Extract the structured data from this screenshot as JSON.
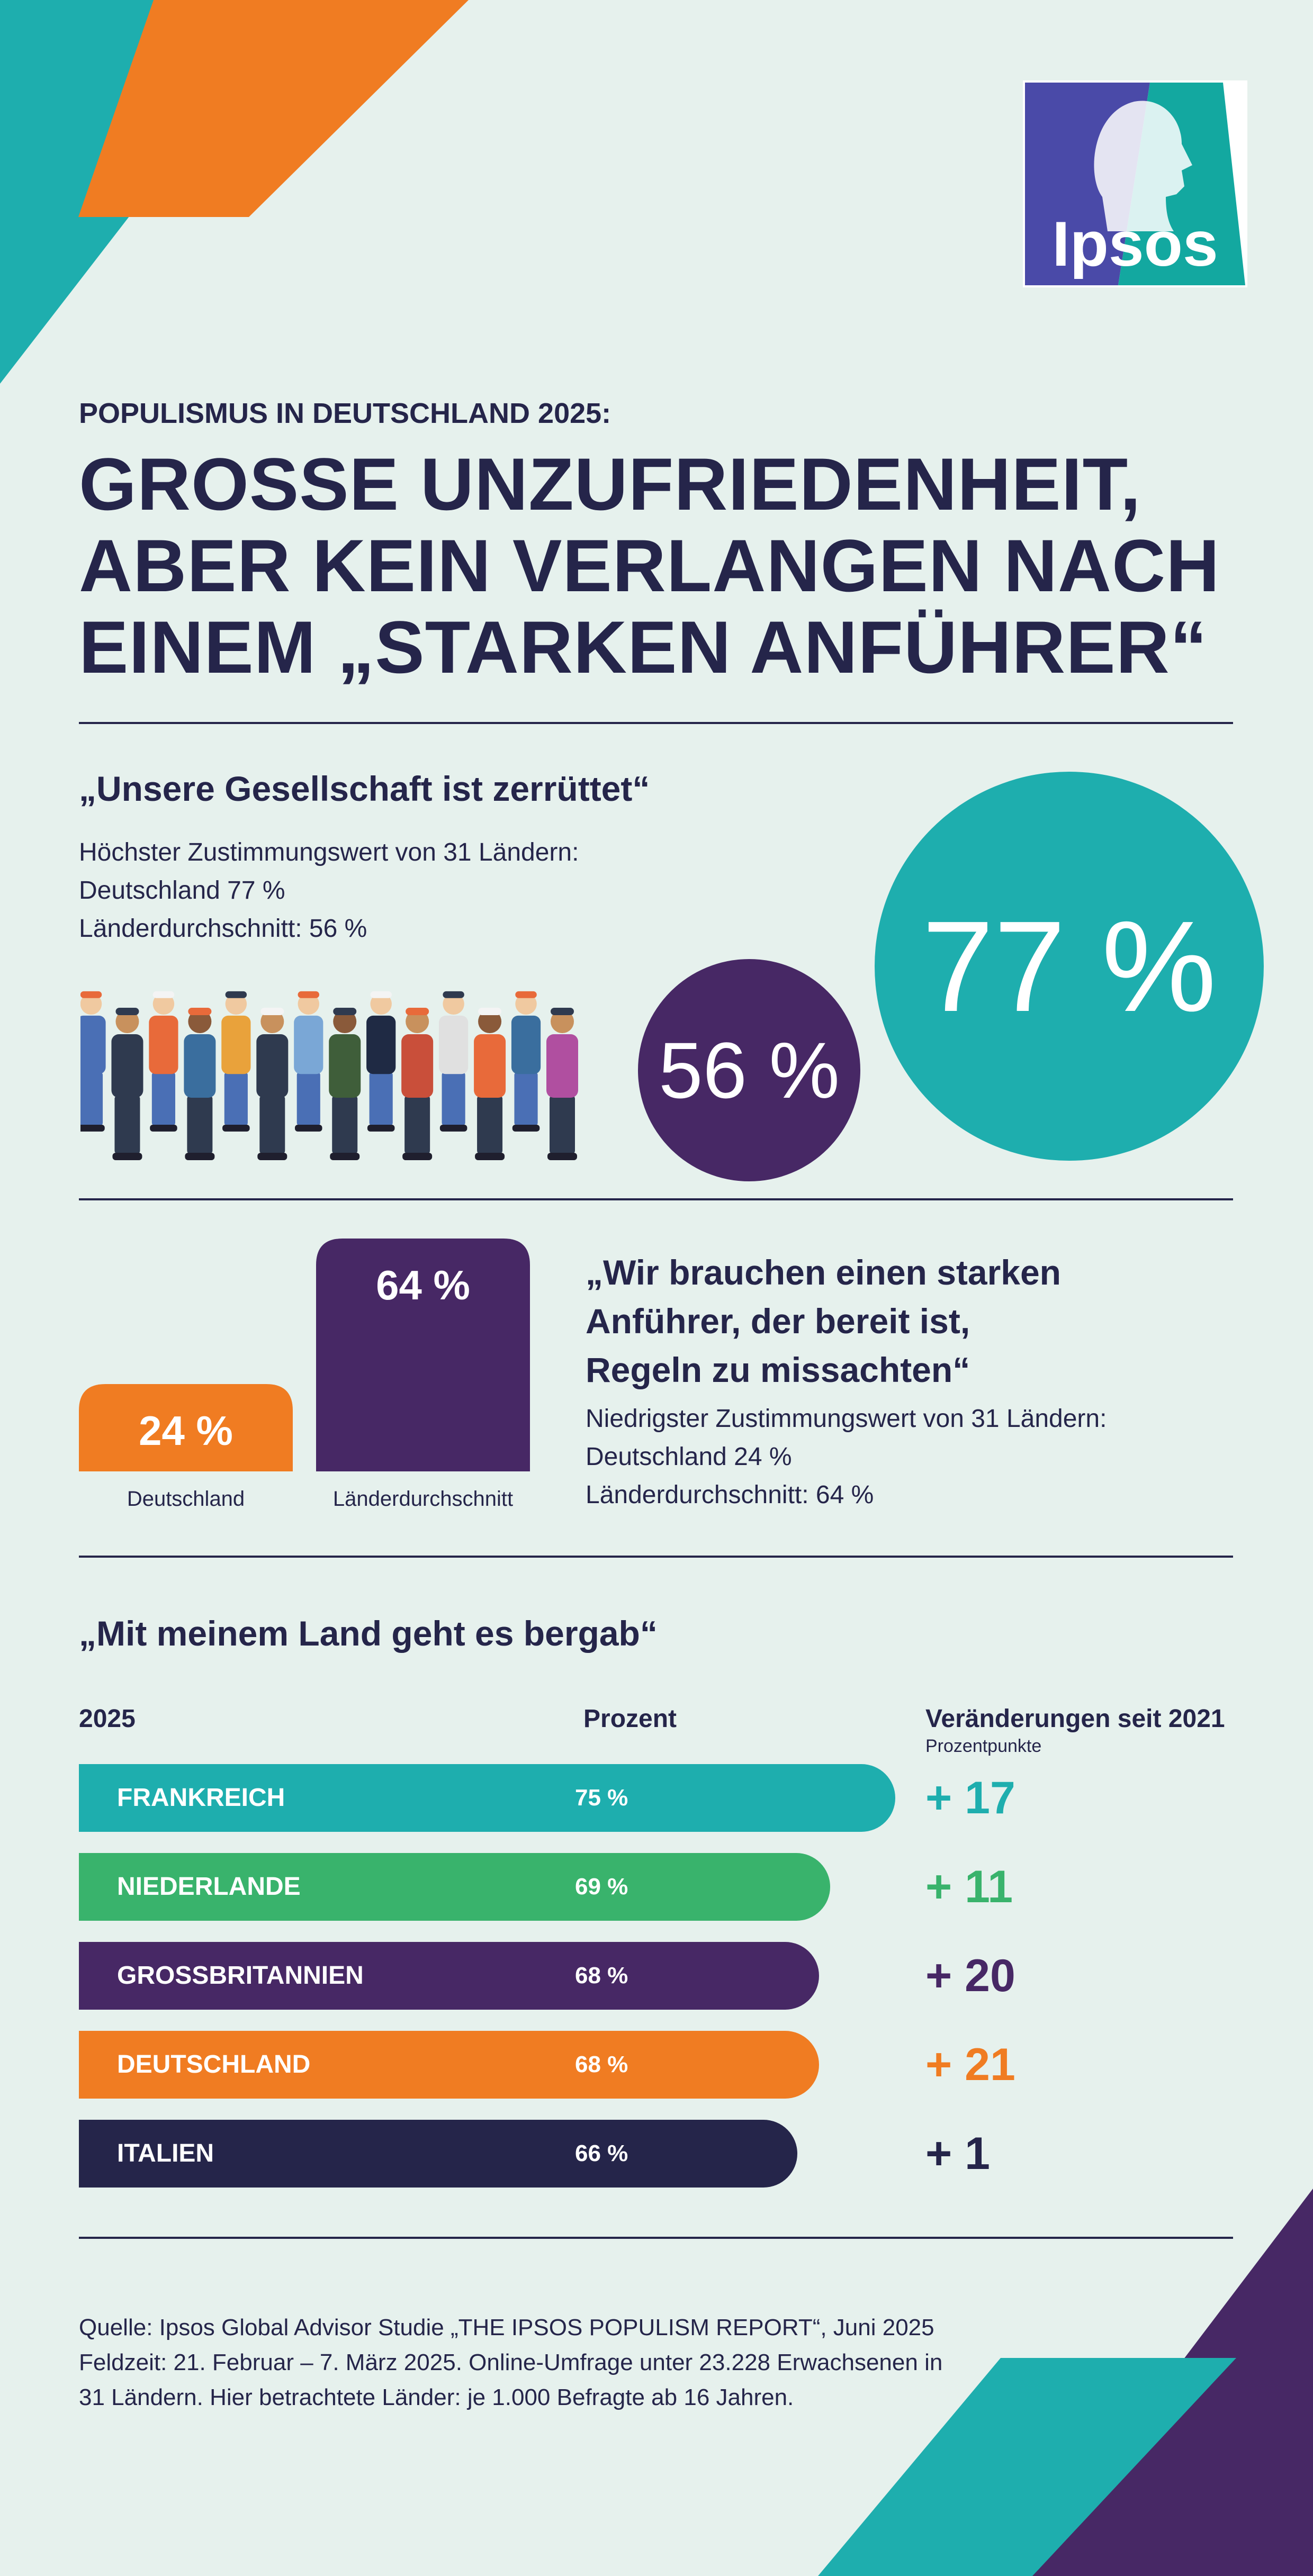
{
  "colors": {
    "background": "#e6f1ed",
    "navy": "#25254a",
    "teal": "#1eaeae",
    "green": "#39b36c",
    "purple": "#472865",
    "orange": "#f07c22"
  },
  "logo": {
    "text": "Ipsos"
  },
  "header": {
    "subtitle": "POPULISMUS IN DEUTSCHLAND 2025:",
    "title_lines": [
      "GROSSE UNZUFRIEDENHEIT,",
      "ABER KEIN VERLANGEN NACH",
      "EINEM „STARKEN ANFÜHRER“"
    ]
  },
  "section1": {
    "quote": "„Unsere Gesellschaft ist zerrüttet“",
    "lines": [
      "Höchster Zustimmungswert von 31 Ländern:",
      "Deutschland 77 %",
      "Länderdurchschnitt:  56 %"
    ],
    "illustration_icon": "group-of-workers-illustration"
  },
  "section2": {
    "quote_lines": [
      "„Wir brauchen einen starken",
      "Anführer, der bereit ist,",
      "Regeln zu missachten“"
    ],
    "lines": [
      "Niedrigster Zustimmungswert von 31 Ländern:",
      "Deutschland 24 %",
      "Länderdurchschnitt:  64 %"
    ]
  },
  "section3": {
    "quote": "„Mit meinem Land geht es bergab“",
    "col_year": "2025",
    "col_percent": "Prozent",
    "col_change": "Veränderungen seit 2021",
    "col_change_sub": "Prozentpunkte"
  },
  "source": {
    "lines": [
      "Quelle: Ipsos Global Advisor Studie „THE IPSOS POPULISM REPORT“, Juni 2025",
      "Feldzeit: 21. Februar – 7. März 2025. Online-Umfrage unter 23.228 Erwachsenen in",
      "31 Ländern. Hier betrachtete Länder: je 1.000 Befragte ab 16 Jahren."
    ]
  },
  "chart_data": [
    {
      "type": "bubble",
      "title": "„Unsere Gesellschaft ist zerrüttet“",
      "categories": [
        "Länderdurchschnitt",
        "Deutschland"
      ],
      "values": [
        56,
        77
      ],
      "labels": [
        "56 %",
        "77 %"
      ],
      "colors": [
        "#472865",
        "#1eaeae"
      ]
    },
    {
      "type": "bar",
      "title": "„Wir brauchen einen starken Anführer, der bereit ist, Regeln zu missachten“",
      "categories": [
        "Deutschland",
        "Länderdurchschnitt"
      ],
      "values": [
        24,
        64
      ],
      "labels": [
        "24 %",
        "64 %"
      ],
      "colors": [
        "#f07c22",
        "#472865"
      ],
      "ylim": [
        0,
        64
      ]
    },
    {
      "type": "bar",
      "orientation": "horizontal",
      "title": "„Mit meinem Land geht es bergab“",
      "xlabel": "Prozent",
      "categories": [
        "FRANKREICH",
        "NIEDERLANDE",
        "GROSSBRITANNIEN",
        "DEUTSCHLAND",
        "ITALIEN"
      ],
      "values": [
        75,
        69,
        68,
        68,
        66
      ],
      "labels": [
        "75 %",
        "69 %",
        "68 %",
        "68 %",
        "66 %"
      ],
      "changes_since_2021": [
        "+ 17",
        "+ 11",
        "+ 20",
        "+ 21",
        "+ 1"
      ],
      "colors": [
        "#1eaeae",
        "#39b36c",
        "#472865",
        "#f07c22",
        "#25254a"
      ],
      "change_colors": [
        "#1eaeae",
        "#39b36c",
        "#472865",
        "#f07c22",
        "#25254a"
      ],
      "xlim": [
        0,
        75
      ]
    }
  ]
}
